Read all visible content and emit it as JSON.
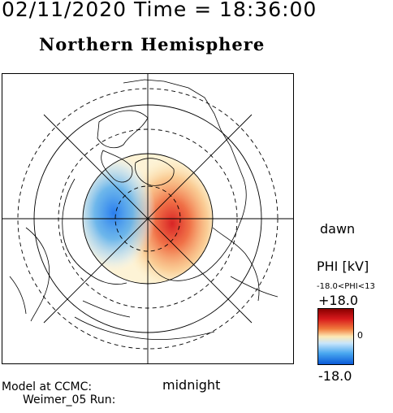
{
  "header": {
    "timestamp_title": "02/11/2020 Time = 18:36:00",
    "hemisphere_title": "Northern Hemisphere"
  },
  "map": {
    "label_dawn": "dawn",
    "label_midnight": "midnight"
  },
  "colorbar": {
    "title": "PHI [kV]",
    "range_text": "-18.0<PHI<13",
    "max_label": "+18.0",
    "mid_label": "0",
    "min_label": "-18.0",
    "colors": [
      "#8b0000",
      "#d7191c",
      "#f07a3c",
      "#fde9b5",
      "#c8e6fb",
      "#4aa8f0",
      "#0a5ad8"
    ]
  },
  "footer": {
    "model_line": "Model at CCMC:",
    "run_line": "Weimer_05 Run:"
  }
}
